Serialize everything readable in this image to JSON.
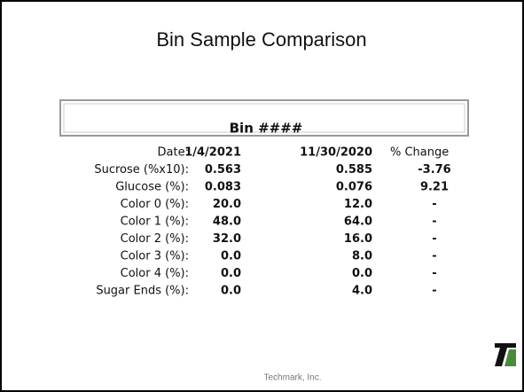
{
  "slide": {
    "title": "Bin Sample Comparison",
    "footer": "Techmark, Inc."
  },
  "table": {
    "box_title": "Bin ####",
    "header": [
      "Date:",
      "1/4/2021",
      "11/30/2020",
      "% Change"
    ],
    "rows": [
      [
        "Sucrose (%x10):",
        "0.563",
        "0.585",
        "-3.76"
      ],
      [
        "Glucose (%):",
        "0.083",
        "0.076",
        "9.21"
      ],
      [
        "Color 0 (%):",
        "20.0",
        "12.0",
        "-"
      ],
      [
        "Color 1 (%):",
        "48.0",
        "64.0",
        "-"
      ],
      [
        "Color 2 (%):",
        "32.0",
        "16.0",
        "-"
      ],
      [
        "Color 3 (%):",
        "0.0",
        "8.0",
        "-"
      ],
      [
        "Color 4 (%):",
        "0.0",
        "0.0",
        "-"
      ],
      [
        "Sugar Ends (%):",
        "0.0",
        "4.0",
        "-"
      ]
    ]
  }
}
